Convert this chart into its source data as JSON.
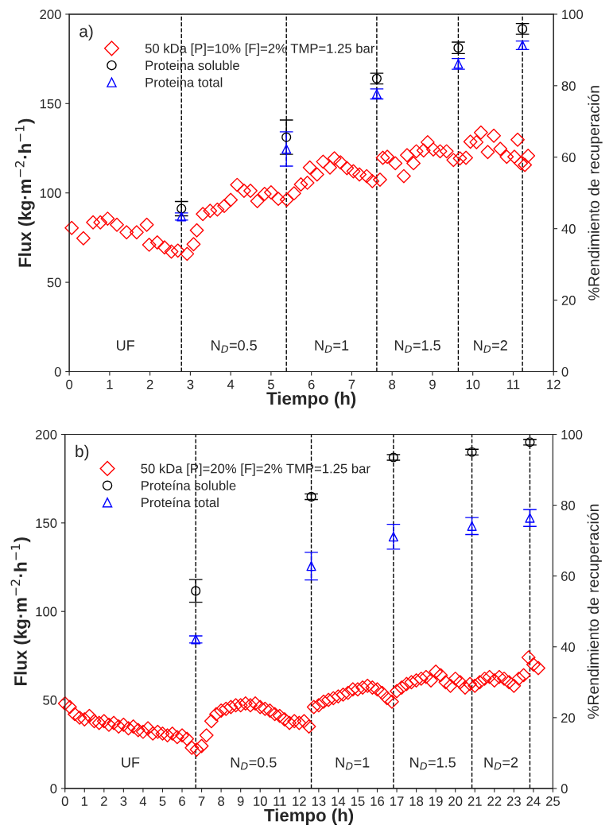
{
  "chart_data": [
    {
      "type": "scatter",
      "xlabel": "Tiempo (h)",
      "ylabel": "Flux (kg·m$^{−2}$·h$^{−1}$)",
      "y2label": "%Rendimiento de recuperación",
      "xlim": [
        0,
        12
      ],
      "xticks": [
        0,
        1,
        2,
        3,
        4,
        5,
        6,
        7,
        8,
        9,
        10,
        11,
        12
      ],
      "ylim": [
        0,
        200
      ],
      "yticks": [
        0,
        50,
        100,
        150,
        200
      ],
      "y2lim": [
        0,
        100
      ],
      "y2ticks": [
        0,
        20,
        40,
        60,
        80,
        100
      ],
      "legend": "top left",
      "grid": false,
      "series": [
        {
          "name": "50 kDa [P]=10% [F]=2% TMP=1.25 bar",
          "color": "#ff0000",
          "marker": "diamond",
          "x": [
            0.06,
            0.35,
            0.59,
            0.77,
            0.95,
            1.18,
            1.42,
            1.67,
            1.92,
            1.98,
            2.18,
            2.36,
            2.53,
            2.69,
            2.92,
            3.08,
            3.16,
            3.31,
            3.49,
            3.67,
            3.84,
            4.0,
            4.16,
            4.33,
            4.49,
            4.66,
            4.84,
            5.0,
            5.18,
            5.39,
            5.57,
            5.74,
            5.9,
            5.96,
            6.14,
            6.29,
            6.46,
            6.57,
            6.72,
            6.88,
            7.04,
            7.19,
            7.37,
            7.51,
            7.7,
            7.77,
            7.88,
            8.08,
            8.29,
            8.37,
            8.53,
            8.6,
            8.78,
            8.88,
            9.02,
            9.19,
            9.35,
            9.52,
            9.68,
            9.83,
            9.94,
            10.09,
            10.2,
            10.37,
            10.52,
            10.68,
            10.84,
            11.03,
            11.11,
            11.19,
            11.29,
            11.37
          ],
          "values": [
            80.4,
            74.6,
            83.5,
            83.5,
            85.6,
            82.2,
            78,
            78,
            82.2,
            71,
            72.3,
            69.5,
            67.2,
            67.7,
            65.9,
            71.3,
            79.1,
            88.2,
            90,
            90.7,
            92.7,
            96.1,
            104.5,
            101.2,
            101.2,
            95.4,
            99.4,
            100.3,
            96.7,
            96.2,
            99.8,
            104.8,
            105.7,
            114.2,
            110.3,
            117.5,
            114.2,
            119.3,
            117.1,
            113.9,
            112.1,
            110.3,
            109.4,
            106.6,
            107.4,
            119.7,
            120.2,
            116.6,
            109.4,
            121.1,
            116.6,
            123.3,
            123.8,
            128.4,
            124.3,
            123.3,
            123.3,
            118.4,
            119.3,
            119.7,
            128.7,
            128.4,
            133.8,
            122.9,
            132,
            124.7,
            120.2,
            120.2,
            129.8,
            116.6,
            115.7,
            120.8
          ]
        },
        {
          "name": "Proteina soluble",
          "color": "#000000",
          "marker": "circle",
          "axis": "y2",
          "x": [
            2.78,
            5.38,
            7.62,
            9.64,
            11.23
          ],
          "values": [
            45.6,
            65.6,
            82,
            90.6,
            95.9
          ],
          "errors": [
            2,
            4.8,
            1.5,
            1.6,
            1.5
          ]
        },
        {
          "name": "Proteina total",
          "color": "#0000ff",
          "marker": "triangle",
          "axis": "y2",
          "x": [
            2.78,
            5.38,
            7.62,
            9.64,
            11.23
          ],
          "values": [
            43.4,
            62.3,
            77.7,
            86.1,
            91.3
          ],
          "errors": [
            1,
            4.8,
            1.4,
            1.5,
            1.2
          ]
        }
      ],
      "ref_lines": [
        {
          "axis": "x",
          "value": 2.78,
          "color": "#000000",
          "line_style": "dashed"
        },
        {
          "axis": "x",
          "value": 5.38,
          "color": "#000000",
          "line_style": "dashed"
        },
        {
          "axis": "x",
          "value": 7.62,
          "color": "#000000",
          "line_style": "dashed"
        },
        {
          "axis": "x",
          "value": 9.64,
          "color": "#000000",
          "line_style": "dashed"
        },
        {
          "axis": "x",
          "value": 11.23,
          "color": "#000000",
          "line_style": "dashed"
        }
      ],
      "annotations": [
        "a)",
        "UF",
        "N$_{D}$=0.5",
        "N$_{D}$=1",
        "N$_{D}$=1.5",
        "N$_{D}$=2"
      ]
    },
    {
      "type": "scatter",
      "xlabel": "Tiempo (h)",
      "ylabel": "Flux (kg·m$^{−2}$·h$^{−1}$)",
      "y2label": "%Rendimiento de recuperación",
      "xlim": [
        0,
        25
      ],
      "xticks": [
        0,
        1,
        2,
        3,
        4,
        5,
        6,
        7,
        8,
        9,
        10,
        11,
        12,
        13,
        14,
        15,
        16,
        17,
        18,
        19,
        20,
        21,
        22,
        23,
        24,
        25
      ],
      "ylim": [
        0,
        200
      ],
      "yticks": [
        0,
        50,
        100,
        150,
        200
      ],
      "y2lim": [
        0,
        100
      ],
      "y2ticks": [
        0,
        20,
        40,
        60,
        80,
        100
      ],
      "legend": "top left",
      "grid": false,
      "series": [
        {
          "name": "50 kDa [P]=20% [F]=2% TMP=1.25 bar",
          "color": "#ff0000",
          "marker": "diamond",
          "x": [
            0,
            0.25,
            0.5,
            0.75,
            1,
            1.25,
            1.5,
            1.75,
            2,
            2.25,
            2.5,
            2.75,
            3,
            3.25,
            3.5,
            3.75,
            4,
            4.25,
            4.5,
            4.75,
            5,
            5.25,
            5.5,
            5.75,
            6,
            6.25,
            6.5,
            6.75,
            7,
            7.25,
            7.5,
            7.75,
            8,
            8.25,
            8.5,
            8.75,
            9,
            9.25,
            9.5,
            9.75,
            10,
            10.25,
            10.5,
            10.75,
            11,
            11.25,
            11.5,
            11.75,
            12,
            12.25,
            12.5,
            12.75,
            13,
            13.25,
            13.5,
            13.75,
            14,
            14.25,
            14.5,
            14.75,
            15,
            15.25,
            15.5,
            15.75,
            16,
            16.25,
            16.5,
            16.75,
            17,
            17.25,
            17.5,
            17.75,
            18,
            18.25,
            18.5,
            18.75,
            19,
            19.25,
            19.5,
            19.75,
            20,
            20.25,
            20.5,
            20.75,
            21,
            21.25,
            21.5,
            21.75,
            22,
            22.25,
            22.5,
            22.75,
            23,
            23.25,
            23.5,
            23.75,
            24,
            24.25
          ],
          "values": [
            48,
            46,
            42,
            40,
            39,
            41,
            38,
            37,
            38,
            36,
            37,
            35,
            36,
            34,
            35,
            33,
            32,
            34,
            31,
            32,
            31,
            30,
            31,
            29,
            30,
            28,
            23,
            22,
            24,
            30,
            38,
            42,
            44,
            45,
            46,
            47,
            47,
            48,
            47,
            48,
            46,
            45,
            44,
            42,
            41,
            39,
            37,
            38,
            37,
            38,
            35,
            46,
            47,
            49,
            50,
            51,
            52,
            53,
            54,
            56,
            56,
            57,
            58,
            57,
            56,
            54,
            51,
            49,
            55,
            57,
            59,
            60,
            61,
            62,
            63,
            61,
            66,
            64,
            60,
            58,
            62,
            60,
            57,
            59,
            58,
            60,
            62,
            63,
            61,
            63,
            62,
            60,
            58,
            62,
            64,
            74,
            70,
            68
          ]
        },
        {
          "name": "Proteína soluble",
          "color": "#000000",
          "marker": "circle",
          "axis": "y2",
          "x": [
            6.7,
            12.62,
            16.83,
            20.85,
            23.82
          ],
          "values": [
            55.8,
            82.4,
            93.5,
            95,
            97.8
          ],
          "errors": [
            3.2,
            0.8,
            0.8,
            0.8,
            0.8
          ]
        },
        {
          "name": "Proteína total",
          "color": "#0000ff",
          "marker": "triangle",
          "axis": "y2",
          "x": [
            6.7,
            12.62,
            16.83,
            20.85,
            23.82
          ],
          "values": [
            42.1,
            62.8,
            71.1,
            74.1,
            76.4
          ],
          "errors": [
            1,
            3.9,
            3.5,
            2.4,
            2.4
          ]
        }
      ],
      "ref_lines": [
        {
          "axis": "x",
          "value": 6.7,
          "color": "#000000",
          "line_style": "dashed"
        },
        {
          "axis": "x",
          "value": 12.62,
          "color": "#000000",
          "line_style": "dashed"
        },
        {
          "axis": "x",
          "value": 16.83,
          "color": "#000000",
          "line_style": "dashed"
        },
        {
          "axis": "x",
          "value": 20.85,
          "color": "#000000",
          "line_style": "dashed"
        },
        {
          "axis": "x",
          "value": 23.82,
          "color": "#000000",
          "line_style": "dashed"
        }
      ],
      "annotations": [
        "b)",
        "UF",
        "N$_{D}$=0.5",
        "N$_{D}$=1",
        "N$_{D}$=1.5",
        "N$_{D}$=2"
      ]
    }
  ]
}
